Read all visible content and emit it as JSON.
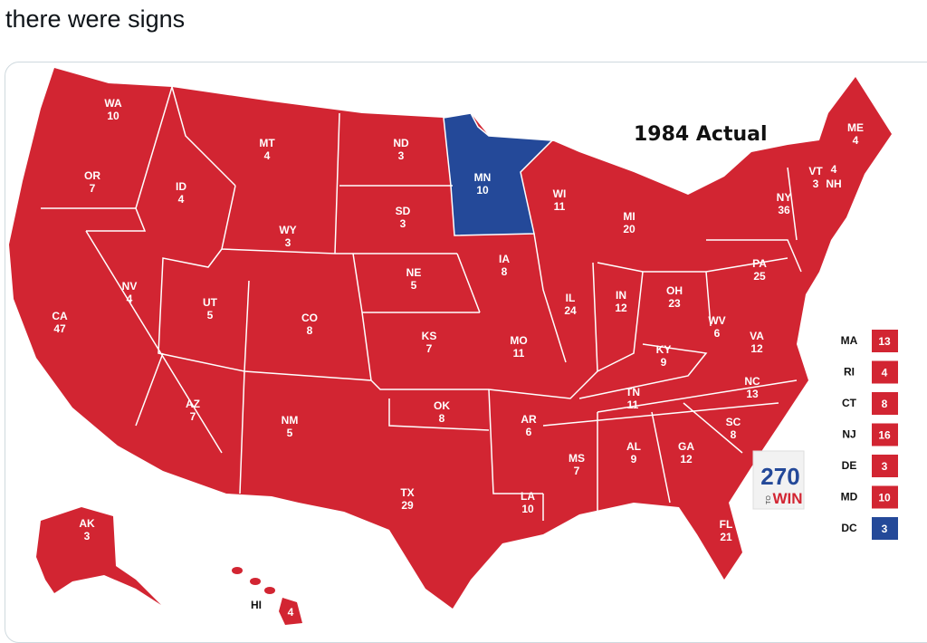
{
  "tweet": {
    "text": "there were signs"
  },
  "map": {
    "title": "1984 Actual",
    "colors": {
      "republican": "#d22532",
      "democrat": "#244999"
    },
    "logo": {
      "number": "270",
      "to": "TO",
      "win": "WIN"
    },
    "states": [
      {
        "abbr": "WA",
        "ev": "10",
        "party": "R"
      },
      {
        "abbr": "OR",
        "ev": "7",
        "party": "R"
      },
      {
        "abbr": "CA",
        "ev": "47",
        "party": "R"
      },
      {
        "abbr": "ID",
        "ev": "4",
        "party": "R"
      },
      {
        "abbr": "NV",
        "ev": "4",
        "party": "R"
      },
      {
        "abbr": "MT",
        "ev": "4",
        "party": "R"
      },
      {
        "abbr": "WY",
        "ev": "3",
        "party": "R"
      },
      {
        "abbr": "UT",
        "ev": "5",
        "party": "R"
      },
      {
        "abbr": "AZ",
        "ev": "7",
        "party": "R"
      },
      {
        "abbr": "CO",
        "ev": "8",
        "party": "R"
      },
      {
        "abbr": "NM",
        "ev": "5",
        "party": "R"
      },
      {
        "abbr": "ND",
        "ev": "3",
        "party": "R"
      },
      {
        "abbr": "SD",
        "ev": "3",
        "party": "R"
      },
      {
        "abbr": "NE",
        "ev": "5",
        "party": "R"
      },
      {
        "abbr": "KS",
        "ev": "7",
        "party": "R"
      },
      {
        "abbr": "OK",
        "ev": "8",
        "party": "R"
      },
      {
        "abbr": "TX",
        "ev": "29",
        "party": "R"
      },
      {
        "abbr": "MN",
        "ev": "10",
        "party": "D"
      },
      {
        "abbr": "IA",
        "ev": "8",
        "party": "R"
      },
      {
        "abbr": "MO",
        "ev": "11",
        "party": "R"
      },
      {
        "abbr": "AR",
        "ev": "6",
        "party": "R"
      },
      {
        "abbr": "LA",
        "ev": "10",
        "party": "R"
      },
      {
        "abbr": "WI",
        "ev": "11",
        "party": "R"
      },
      {
        "abbr": "IL",
        "ev": "24",
        "party": "R"
      },
      {
        "abbr": "MI",
        "ev": "20",
        "party": "R"
      },
      {
        "abbr": "IN",
        "ev": "12",
        "party": "R"
      },
      {
        "abbr": "OH",
        "ev": "23",
        "party": "R"
      },
      {
        "abbr": "KY",
        "ev": "9",
        "party": "R"
      },
      {
        "abbr": "TN",
        "ev": "11",
        "party": "R"
      },
      {
        "abbr": "MS",
        "ev": "7",
        "party": "R"
      },
      {
        "abbr": "AL",
        "ev": "9",
        "party": "R"
      },
      {
        "abbr": "GA",
        "ev": "12",
        "party": "R"
      },
      {
        "abbr": "FL",
        "ev": "21",
        "party": "R"
      },
      {
        "abbr": "SC",
        "ev": "8",
        "party": "R"
      },
      {
        "abbr": "NC",
        "ev": "13",
        "party": "R"
      },
      {
        "abbr": "VA",
        "ev": "12",
        "party": "R"
      },
      {
        "abbr": "WV",
        "ev": "6",
        "party": "R"
      },
      {
        "abbr": "PA",
        "ev": "25",
        "party": "R"
      },
      {
        "abbr": "NY",
        "ev": "36",
        "party": "R"
      },
      {
        "abbr": "VT",
        "ev": "3",
        "party": "R"
      },
      {
        "abbr": "NH",
        "ev": "4",
        "party": "R"
      },
      {
        "abbr": "ME",
        "ev": "4",
        "party": "R"
      },
      {
        "abbr": "AK",
        "ev": "3",
        "party": "R"
      },
      {
        "abbr": "HI",
        "ev": "4",
        "party": "R"
      }
    ],
    "legend": [
      {
        "abbr": "MA",
        "ev": "13",
        "party": "R"
      },
      {
        "abbr": "RI",
        "ev": "4",
        "party": "R"
      },
      {
        "abbr": "CT",
        "ev": "8",
        "party": "R"
      },
      {
        "abbr": "NJ",
        "ev": "16",
        "party": "R"
      },
      {
        "abbr": "DE",
        "ev": "3",
        "party": "R"
      },
      {
        "abbr": "MD",
        "ev": "10",
        "party": "R"
      },
      {
        "abbr": "DC",
        "ev": "3",
        "party": "D"
      }
    ]
  }
}
